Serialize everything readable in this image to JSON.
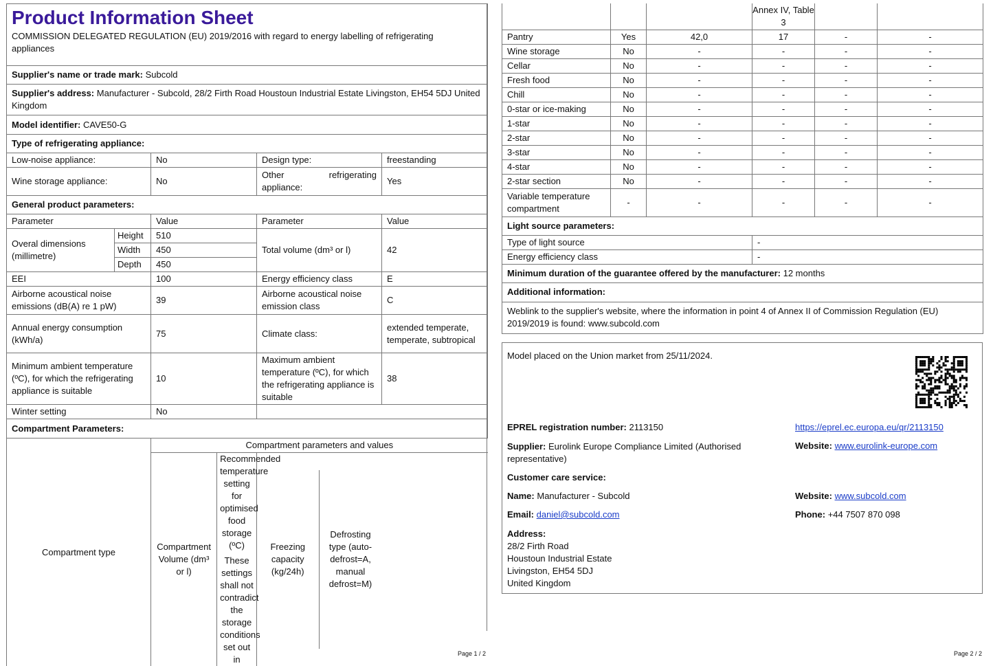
{
  "title": "Product Information Sheet",
  "regulation": "COMMISSION DELEGATED REGULATION (EU) 2019/2016 with regard to energy labelling of refrigerating appliances",
  "supplier_name_label": "Supplier's name or trade mark:",
  "supplier_name": "Subcold",
  "supplier_address_label": "Supplier's address:",
  "supplier_address": "Manufacturer - Subcold, 28/2 Firth Road Houstoun Industrial Estate Livingston, EH54 5DJ United Kingdom",
  "model_label": "Model identifier:",
  "model": "CAVE50-G",
  "type_label": "Type of refrigerating appliance:",
  "low_noise_label": "Low-noise appliance:",
  "low_noise": "No",
  "design_label": "Design type:",
  "design": "freestanding",
  "wine_label": "Wine storage appliance:",
  "wine": "No",
  "other_label": "Other refrigerating appliance:",
  "other": "Yes",
  "general_label": "General product parameters:",
  "param_h": "Parameter",
  "value_h": "Value",
  "dims_label": "Overal dimensions (millimetre)",
  "height_label": "Height",
  "height": "510",
  "width_label": "Width",
  "width": "450",
  "depth_label": "Depth",
  "depth": "450",
  "volume_label": "Total volume (dm³ or l)",
  "volume": "42",
  "eei_label": "EEI",
  "eei": "100",
  "eec_label": "Energy efficiency class",
  "eec": "E",
  "noise_label": "Airborne acoustical noise emissions (dB(A) re 1 pW)",
  "noise": "39",
  "noise_class_label": "Airborne acoustical noise emission class",
  "noise_class": "C",
  "annual_label": "Annual energy consumption (kWh/a)",
  "annual": "75",
  "climate_label": "Climate class:",
  "climate": "extended temperate, temperate, subtropical",
  "min_amb_label": "Minimum ambient temperature (ºC), for which the refrigerating appliance is suitable",
  "min_amb": "10",
  "max_amb_label": "Maximum ambient temperature (ºC), for which the refrigerating appliance is suitable",
  "max_amb": "38",
  "winter_label": "Winter setting",
  "winter": "No",
  "comp_label": "Compartment Parameters:",
  "comp_header": "Compartment parameters and values",
  "comp_cols": [
    "Compartment type",
    "Compartment Volume (dm³ or l)",
    "Recommended temperature setting for optimised food storage (ºC)",
    "These settings shall not contradict the storage conditions set out in",
    "Freezing capacity (kg/24h)",
    "Defrosting type (auto-defrost=A, manual defrost=M)"
  ],
  "comp_cont": "Annex IV, Table 3",
  "compartments": [
    [
      "Pantry",
      "Yes",
      "42,0",
      "17",
      "-",
      "-"
    ],
    [
      "Wine storage",
      "No",
      "-",
      "-",
      "-",
      "-"
    ],
    [
      "Cellar",
      "No",
      "-",
      "-",
      "-",
      "-"
    ],
    [
      "Fresh food",
      "No",
      "-",
      "-",
      "-",
      "-"
    ],
    [
      "Chill",
      "No",
      "-",
      "-",
      "-",
      "-"
    ],
    [
      "0-star or ice-making",
      "No",
      "-",
      "-",
      "-",
      "-"
    ],
    [
      "1-star",
      "No",
      "-",
      "-",
      "-",
      "-"
    ],
    [
      "2-star",
      "No",
      "-",
      "-",
      "-",
      "-"
    ],
    [
      "3-star",
      "No",
      "-",
      "-",
      "-",
      "-"
    ],
    [
      "4-star",
      "No",
      "-",
      "-",
      "-",
      "-"
    ],
    [
      "2-star section",
      "No",
      "-",
      "-",
      "-",
      "-"
    ],
    [
      "Variable temperature compartment",
      "-",
      "-",
      "-",
      "-",
      "-"
    ]
  ],
  "light_label": "Light source parameters:",
  "light_type_label": "Type of light source",
  "light_type": "-",
  "light_eec_label": "Energy efficiency class",
  "light_eec": "-",
  "guarantee_label": "Minimum duration of the guarantee offered by the manufacturer:",
  "guarantee": "12 months",
  "additional_label": "Additional information:",
  "weblink_text": "Weblink to the supplier's website, where the information in point 4 of Annex II of Commission Regulation (EU) 2019/2019 is found:",
  "weblink": "www.subcold.com",
  "market": "Model placed on the Union market from 25/11/2024.",
  "eprel_label": "EPREL registration number:",
  "eprel": "2113150",
  "eprel_url": "https://eprel.ec.europa.eu/qr/2113150",
  "supplier2_label": "Supplier:",
  "supplier2": "Eurolink Europe Compliance Limited (Authorised representative)",
  "website_label": "Website:",
  "supplier_website": "www.eurolink-europe.com",
  "care_label": "Customer care service:",
  "name_label": "Name:",
  "care_name": "Manufacturer - Subcold",
  "care_website": "www.subcold.com",
  "email_label": "Email:",
  "email": "daniel@subcold.com",
  "phone_label": "Phone:",
  "phone": "+44 7507 870 098",
  "address_label": "Address:",
  "address_lines": [
    "28/2 Firth Road",
    "Houstoun Industrial Estate",
    "Livingston, EH54 5DJ",
    "United Kingdom"
  ],
  "page1": "Page 1 / 2",
  "page2": "Page 2 / 2",
  "colors": {
    "title": "#3a1a9a",
    "link": "#1a3cc8"
  }
}
